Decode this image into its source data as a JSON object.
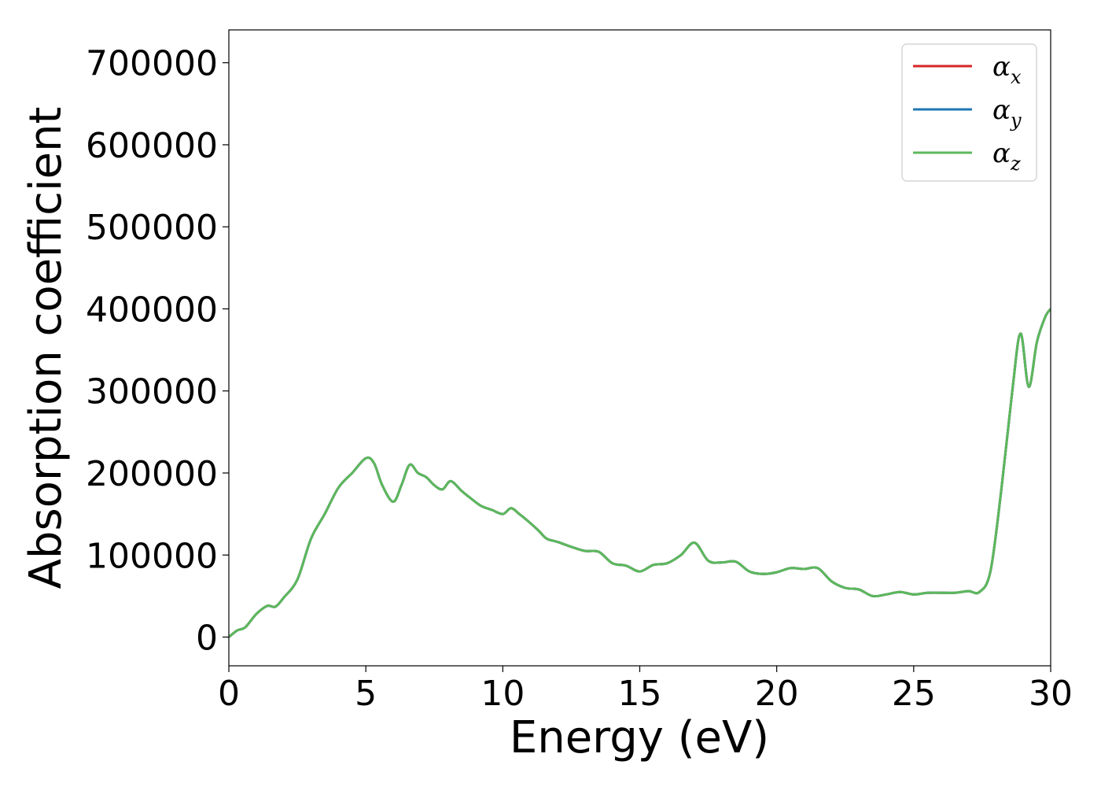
{
  "chart_data": {
    "type": "line",
    "xlabel": "Energy (eV)",
    "ylabel": "Absorption coefficient",
    "xlim": [
      0,
      30
    ],
    "ylim": [
      -35000,
      740000
    ],
    "xticks": [
      0,
      5,
      10,
      15,
      20,
      25,
      30
    ],
    "yticks": [
      0,
      100000,
      200000,
      300000,
      400000,
      500000,
      600000,
      700000
    ],
    "grid": false,
    "legend_position": "top-right",
    "series": [
      {
        "name": "α_x",
        "base": "α",
        "sub": "x",
        "color": "#d62728",
        "x": [
          0,
          0.3,
          0.6,
          1.0,
          1.4,
          1.7,
          2.0,
          2.5,
          3.0,
          3.5,
          4.0,
          4.5,
          5.0,
          5.3,
          5.6,
          6.0,
          6.3,
          6.6,
          6.9,
          7.2,
          7.5,
          7.8,
          8.1,
          8.5,
          8.8,
          9.2,
          9.6,
          10.0,
          10.3,
          10.6,
          10.9,
          11.3,
          11.6,
          12.0,
          12.5,
          13.0,
          13.5,
          14.0,
          14.5,
          15.0,
          15.5,
          16.0,
          16.5,
          17.0,
          17.5,
          18.0,
          18.5,
          19.0,
          19.5,
          20.0,
          20.5,
          21.0,
          21.5,
          22.0,
          22.5,
          23.0,
          23.5,
          24.0,
          24.5,
          25.0,
          25.5,
          26.0,
          26.5,
          27.0,
          27.4,
          27.8,
          28.2,
          28.6,
          28.9,
          29.2,
          29.5,
          29.8,
          30.0
        ],
        "y": [
          0,
          8000,
          12000,
          28000,
          38000,
          37000,
          48000,
          70000,
          120000,
          150000,
          182000,
          200000,
          218000,
          212000,
          185000,
          165000,
          185000,
          210000,
          200000,
          195000,
          185000,
          180000,
          190000,
          178000,
          170000,
          160000,
          155000,
          150000,
          157000,
          150000,
          142000,
          130000,
          120000,
          116000,
          110000,
          105000,
          104000,
          90000,
          87000,
          80000,
          88000,
          90000,
          100000,
          115000,
          93000,
          91000,
          92000,
          80000,
          77000,
          79000,
          84000,
          83000,
          84000,
          68000,
          60000,
          58000,
          50000,
          52000,
          55000,
          52000,
          54000,
          54000,
          54000,
          56000,
          55000,
          80000,
          180000,
          300000,
          370000,
          305000,
          360000,
          390000,
          400000
        ]
      },
      {
        "name": "α_y",
        "base": "α",
        "sub": "y",
        "color": "#1f77b4",
        "x": [
          0,
          0.3,
          0.6,
          1.0,
          1.4,
          1.7,
          2.0,
          2.5,
          3.0,
          3.5,
          4.0,
          4.5,
          5.0,
          5.3,
          5.6,
          6.0,
          6.3,
          6.6,
          6.9,
          7.2,
          7.5,
          7.8,
          8.1,
          8.5,
          8.8,
          9.2,
          9.6,
          10.0,
          10.3,
          10.6,
          10.9,
          11.3,
          11.6,
          12.0,
          12.5,
          13.0,
          13.5,
          14.0,
          14.5,
          15.0,
          15.5,
          16.0,
          16.5,
          17.0,
          17.5,
          18.0,
          18.5,
          19.0,
          19.5,
          20.0,
          20.5,
          21.0,
          21.5,
          22.0,
          22.5,
          23.0,
          23.5,
          24.0,
          24.5,
          25.0,
          25.5,
          26.0,
          26.5,
          27.0,
          27.4,
          27.8,
          28.2,
          28.6,
          28.9,
          29.2,
          29.5,
          29.8,
          30.0
        ],
        "y": [
          0,
          8000,
          12000,
          28000,
          38000,
          37000,
          48000,
          70000,
          120000,
          150000,
          182000,
          200000,
          218000,
          212000,
          185000,
          165000,
          185000,
          210000,
          200000,
          195000,
          185000,
          180000,
          190000,
          178000,
          170000,
          160000,
          155000,
          150000,
          157000,
          150000,
          142000,
          130000,
          120000,
          116000,
          110000,
          105000,
          104000,
          90000,
          87000,
          80000,
          88000,
          90000,
          100000,
          115000,
          93000,
          91000,
          92000,
          80000,
          77000,
          79000,
          84000,
          83000,
          84000,
          68000,
          60000,
          58000,
          50000,
          52000,
          55000,
          52000,
          54000,
          54000,
          54000,
          56000,
          55000,
          80000,
          180000,
          300000,
          370000,
          305000,
          360000,
          390000,
          400000
        ]
      },
      {
        "name": "α_z",
        "base": "α",
        "sub": "z",
        "color": "#5cb85c",
        "x": [
          0,
          0.3,
          0.6,
          1.0,
          1.4,
          1.7,
          2.0,
          2.5,
          3.0,
          3.5,
          4.0,
          4.5,
          5.0,
          5.3,
          5.6,
          6.0,
          6.3,
          6.6,
          6.9,
          7.2,
          7.5,
          7.8,
          8.1,
          8.5,
          8.8,
          9.2,
          9.6,
          10.0,
          10.3,
          10.6,
          10.9,
          11.3,
          11.6,
          12.0,
          12.5,
          13.0,
          13.5,
          14.0,
          14.5,
          15.0,
          15.5,
          16.0,
          16.5,
          17.0,
          17.5,
          18.0,
          18.5,
          19.0,
          19.5,
          20.0,
          20.5,
          21.0,
          21.5,
          22.0,
          22.5,
          23.0,
          23.5,
          24.0,
          24.5,
          25.0,
          25.5,
          26.0,
          26.5,
          27.0,
          27.4,
          27.8,
          28.2,
          28.6,
          28.9,
          29.2,
          29.5,
          29.8,
          30.0
        ],
        "y": [
          0,
          8000,
          12000,
          28000,
          38000,
          37000,
          48000,
          70000,
          120000,
          150000,
          182000,
          200000,
          218000,
          212000,
          185000,
          165000,
          185000,
          210000,
          200000,
          195000,
          185000,
          180000,
          190000,
          178000,
          170000,
          160000,
          155000,
          150000,
          157000,
          150000,
          142000,
          130000,
          120000,
          116000,
          110000,
          105000,
          104000,
          90000,
          87000,
          80000,
          88000,
          90000,
          100000,
          115000,
          93000,
          91000,
          92000,
          80000,
          77000,
          79000,
          84000,
          83000,
          84000,
          68000,
          60000,
          58000,
          50000,
          52000,
          55000,
          52000,
          54000,
          54000,
          54000,
          56000,
          55000,
          80000,
          180000,
          300000,
          370000,
          305000,
          360000,
          390000,
          400000
        ]
      }
    ]
  }
}
